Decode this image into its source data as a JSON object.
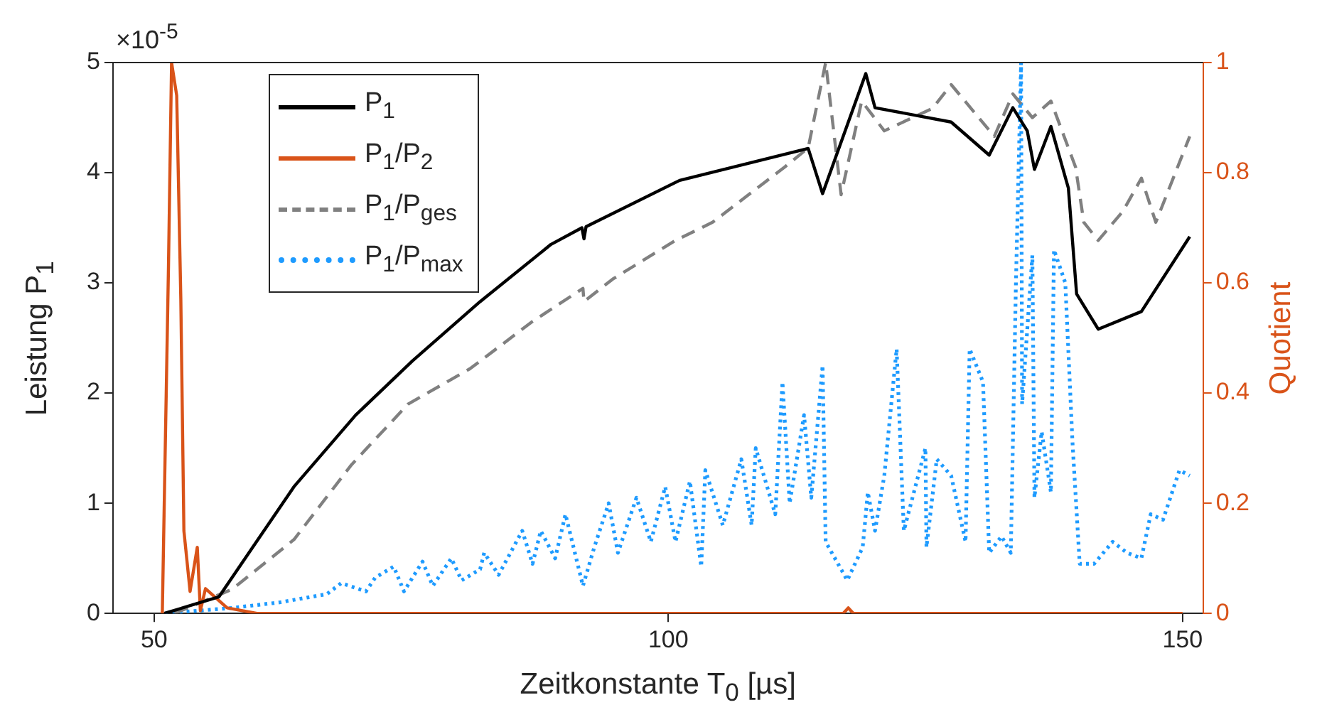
{
  "chart_data": {
    "type": "line",
    "xlabel": "Zeitkonstante T$_{0}$ [µs]",
    "ylabel": "Leistung P$_{1}$",
    "y2label": "Quotient",
    "annotations": [
      "×10$^{-5}$"
    ],
    "xlim": [
      46,
      152
    ],
    "xticks": [
      50,
      100,
      150
    ],
    "ylim": [
      0,
      5
    ],
    "yticks": [
      0,
      1,
      2,
      3,
      4,
      5
    ],
    "y2lim": [
      0,
      1
    ],
    "y2ticks": [
      0,
      0.2,
      0.4,
      0.6,
      0.8,
      1
    ],
    "legend": "top left",
    "series": [
      {
        "name": "P$_{1}$",
        "color": "#000000",
        "line_style": "solid",
        "x": [
          51,
          56.3,
          63.6,
          69.6,
          75.1,
          81.7,
          88.6,
          91.6,
          91.8,
          92,
          101.1,
          113.6,
          115,
          119.2,
          120.1,
          127.5,
          131.2,
          133.5,
          134.9,
          135.6,
          137.2,
          138.9,
          139.7,
          141.8,
          146,
          150.7
        ],
        "values": [
          0,
          0.15,
          1.15,
          1.8,
          2.29,
          2.83,
          3.35,
          3.5,
          3.4,
          3.51,
          3.93,
          4.22,
          3.81,
          4.9,
          4.59,
          4.46,
          4.16,
          4.59,
          4.38,
          4.03,
          4.42,
          3.86,
          2.9,
          2.58,
          2.74,
          3.42
        ]
      },
      {
        "name": "P$_{1}$/P$_{2}$",
        "color": "#d95319",
        "axis": "y2",
        "line_style": "solid",
        "x": [
          50.8,
          51.4,
          51.7,
          52.2,
          52.6,
          52.9,
          53.5,
          54.2,
          54.5,
          55,
          57.1,
          60,
          117,
          117.5,
          118,
          150
        ],
        "values": [
          0,
          0.63,
          1,
          0.94,
          0.57,
          0.15,
          0.04,
          0.12,
          0.005,
          0.045,
          0.01,
          0,
          0,
          0.01,
          0,
          0
        ]
      },
      {
        "name": "P$_{1}$/P$_{ges}$",
        "color": "#808080",
        "axis": "y2",
        "line_style": "dashed",
        "x": [
          52,
          57.6,
          63.6,
          69.2,
          74.7,
          80.7,
          86.8,
          91.7,
          91.8,
          94.6,
          100.7,
          104.3,
          111.3,
          113.6,
          115.3,
          116.8,
          118.8,
          121,
          125.7,
          127.5,
          131.7,
          133.5,
          135.4,
          137.2,
          139.6,
          140.4,
          141.8,
          144.2,
          146,
          147.4,
          150.7
        ],
        "values": [
          0,
          0.044,
          0.134,
          0.27,
          0.38,
          0.444,
          0.53,
          0.59,
          0.566,
          0.607,
          0.677,
          0.71,
          0.81,
          0.845,
          1,
          0.76,
          0.93,
          0.876,
          0.917,
          0.96,
          0.866,
          0.943,
          0.9,
          0.93,
          0.81,
          0.71,
          0.677,
          0.73,
          0.79,
          0.71,
          0.866
        ]
      },
      {
        "name": "P$_{1}$/P$_{max}$",
        "color": "#1e9bff",
        "axis": "y2",
        "line_style": "dotted",
        "x": [
          51.1,
          57.6,
          62.2,
          66.8,
          68.2,
          70.6,
          71.5,
          73.3,
          74.3,
          76.1,
          77.1,
          78.9,
          79.9,
          81.7,
          82.1,
          83.5,
          85.8,
          86.8,
          87.6,
          89,
          90,
          91.7,
          92.8,
          94.2,
          95.1,
          96.9,
          98.3,
          99.7,
          100.7,
          102.1,
          103.2,
          103.6,
          105.3,
          107.1,
          108.1,
          108.5,
          110.4,
          111.1,
          111.8,
          113.2,
          113.9,
          115,
          115.3,
          117.4,
          118.9,
          119.4,
          120.1,
          121,
          122.2,
          122.9,
          125,
          125.1,
          126.1,
          127.5,
          128.9,
          129.3,
          130.6,
          131.2,
          132.4,
          133.3,
          133.8,
          134.3,
          134.4,
          135.4,
          135.6,
          136.3,
          137.2,
          137.5,
          138.6,
          139.3,
          140,
          141.4,
          143.2,
          144.6,
          146,
          146.9,
          148.1,
          149.7,
          150.7
        ],
        "values": [
          0,
          0.01,
          0.02,
          0.035,
          0.055,
          0.04,
          0.065,
          0.085,
          0.04,
          0.094,
          0.05,
          0.1,
          0.06,
          0.08,
          0.11,
          0.07,
          0.15,
          0.09,
          0.15,
          0.1,
          0.18,
          0.05,
          0.12,
          0.2,
          0.11,
          0.21,
          0.13,
          0.23,
          0.13,
          0.24,
          0.085,
          0.26,
          0.16,
          0.28,
          0.16,
          0.3,
          0.18,
          0.42,
          0.2,
          0.36,
          0.21,
          0.45,
          0.13,
          0.06,
          0.12,
          0.22,
          0.15,
          0.25,
          0.48,
          0.15,
          0.3,
          0.12,
          0.28,
          0.25,
          0.13,
          0.48,
          0.42,
          0.11,
          0.14,
          0.11,
          0.6,
          1,
          0.38,
          0.65,
          0.21,
          0.33,
          0.22,
          0.66,
          0.6,
          0.31,
          0.09,
          0.09,
          0.13,
          0.11,
          0.1,
          0.18,
          0.17,
          0.26,
          0.25
        ]
      }
    ]
  }
}
